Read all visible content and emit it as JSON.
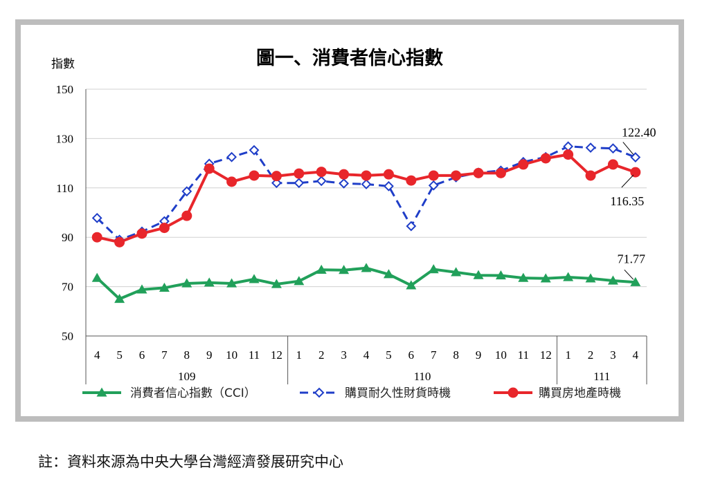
{
  "chart_data": {
    "type": "line",
    "title": "圖一、消費者信心指數",
    "ylabel": "指數",
    "ylim": [
      50,
      150
    ],
    "yticks": [
      50,
      70,
      90,
      110,
      130,
      150
    ],
    "categories": [
      "4",
      "5",
      "6",
      "7",
      "8",
      "9",
      "10",
      "11",
      "12",
      "1",
      "2",
      "3",
      "4",
      "5",
      "6",
      "7",
      "8",
      "9",
      "10",
      "11",
      "12",
      "1",
      "2",
      "3",
      "4"
    ],
    "year_groups": [
      {
        "label": "109",
        "count": 9
      },
      {
        "label": "110",
        "count": 12
      },
      {
        "label": "111",
        "count": 4
      }
    ],
    "series": [
      {
        "name": "消費者信心指數（CCI）",
        "color": "#21a05a",
        "marker": "triangle",
        "dash": "solid",
        "values": [
          73.5,
          65.0,
          68.8,
          69.5,
          71.3,
          71.6,
          71.3,
          73.0,
          71.0,
          72.2,
          76.8,
          76.7,
          77.5,
          75.0,
          70.5,
          77.0,
          75.8,
          74.6,
          74.5,
          73.5,
          73.3,
          73.8,
          73.3,
          72.4,
          71.77
        ]
      },
      {
        "name": "購買耐久性財貨時機",
        "color": "#1f3ec8",
        "marker": "diamond",
        "dash": "dashed",
        "values": [
          97.8,
          89.0,
          92.3,
          96.5,
          108.6,
          119.8,
          122.5,
          125.3,
          112.0,
          112.0,
          112.8,
          111.8,
          111.5,
          110.7,
          94.5,
          111.0,
          114.3,
          116.2,
          117.0,
          120.5,
          122.5,
          126.8,
          126.3,
          126.0,
          122.4
        ]
      },
      {
        "name": "購買房地產時機",
        "color": "#e8262b",
        "marker": "circle",
        "dash": "solid",
        "values": [
          90.0,
          88.0,
          91.5,
          93.8,
          98.7,
          117.8,
          112.5,
          115.0,
          114.8,
          115.8,
          116.5,
          115.5,
          115.0,
          115.5,
          113.0,
          115.0,
          115.0,
          116.0,
          116.0,
          119.5,
          122.0,
          123.5,
          115.0,
          119.5,
          116.35
        ]
      }
    ],
    "annotations": [
      {
        "text": "122.40",
        "series": 1
      },
      {
        "text": "116.35",
        "series": 2
      },
      {
        "text": "71.77",
        "series": 0
      }
    ],
    "legend_position": "bottom"
  },
  "footnote": "註：資料來源為中央大學台灣經濟發展研究中心"
}
